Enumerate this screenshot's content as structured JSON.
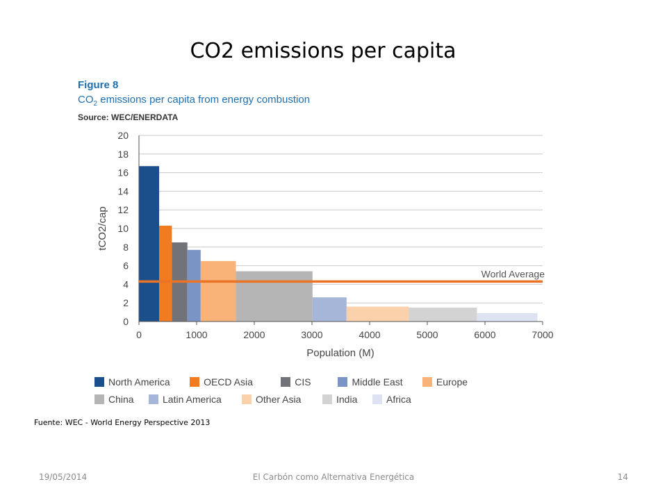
{
  "slide": {
    "title": "CO2 emissions per capita"
  },
  "figure": {
    "number": "Figure 8",
    "caption_prefix": "CO",
    "caption_sub": "2",
    "caption_rest": " emissions per capita from energy combustion",
    "source": "Source: WEC/ENERDATA"
  },
  "chart_data": {
    "type": "bar",
    "variable_width": true,
    "xlabel": "Population (M)",
    "ylabel": "tCO2/cap",
    "xlim": [
      0,
      7000
    ],
    "ylim": [
      0,
      20
    ],
    "xticks": [
      0,
      1000,
      2000,
      3000,
      4000,
      5000,
      6000,
      7000
    ],
    "yticks": [
      0,
      2,
      4,
      6,
      8,
      10,
      12,
      14,
      16,
      18,
      20
    ],
    "grid": true,
    "reference_line": {
      "label": "World Average",
      "value": 4.3,
      "color": "#ea7325"
    },
    "series": [
      {
        "name": "North America",
        "x_start": 0,
        "x_end": 350,
        "value": 16.7,
        "color": "#1b4f8c"
      },
      {
        "name": "OECD Asia",
        "x_start": 350,
        "x_end": 570,
        "value": 10.3,
        "color": "#f27a1f"
      },
      {
        "name": "CIS",
        "x_start": 570,
        "x_end": 840,
        "value": 8.5,
        "color": "#727378"
      },
      {
        "name": "Middle East",
        "x_start": 840,
        "x_end": 1070,
        "value": 7.7,
        "color": "#7a94c6"
      },
      {
        "name": "Europe",
        "x_start": 1070,
        "x_end": 1680,
        "value": 6.5,
        "color": "#f9b278"
      },
      {
        "name": "China",
        "x_start": 1680,
        "x_end": 3010,
        "value": 5.4,
        "color": "#b5b5b5"
      },
      {
        "name": "Latin America",
        "x_start": 3010,
        "x_end": 3600,
        "value": 2.6,
        "color": "#a6b6d8"
      },
      {
        "name": "Other Asia",
        "x_start": 3600,
        "x_end": 4680,
        "value": 1.6,
        "color": "#fbd1ac"
      },
      {
        "name": "India",
        "x_start": 4680,
        "x_end": 5860,
        "value": 1.5,
        "color": "#d3d3d3"
      },
      {
        "name": "Africa",
        "x_start": 5860,
        "x_end": 6910,
        "value": 0.9,
        "color": "#dde3f2"
      }
    ]
  },
  "legend": {
    "row1": [
      "North America",
      "OECD Asia",
      "CIS",
      "Middle East",
      "Europe"
    ],
    "row2": [
      "China",
      "Latin America",
      "Other Asia",
      "India",
      "Africa"
    ]
  },
  "source_note": "Fuente: WEC - World Energy Perspective 2013",
  "footer": {
    "date": "19/05/2014",
    "center": "El Carbón como Alternativa Energética",
    "page": "14"
  }
}
